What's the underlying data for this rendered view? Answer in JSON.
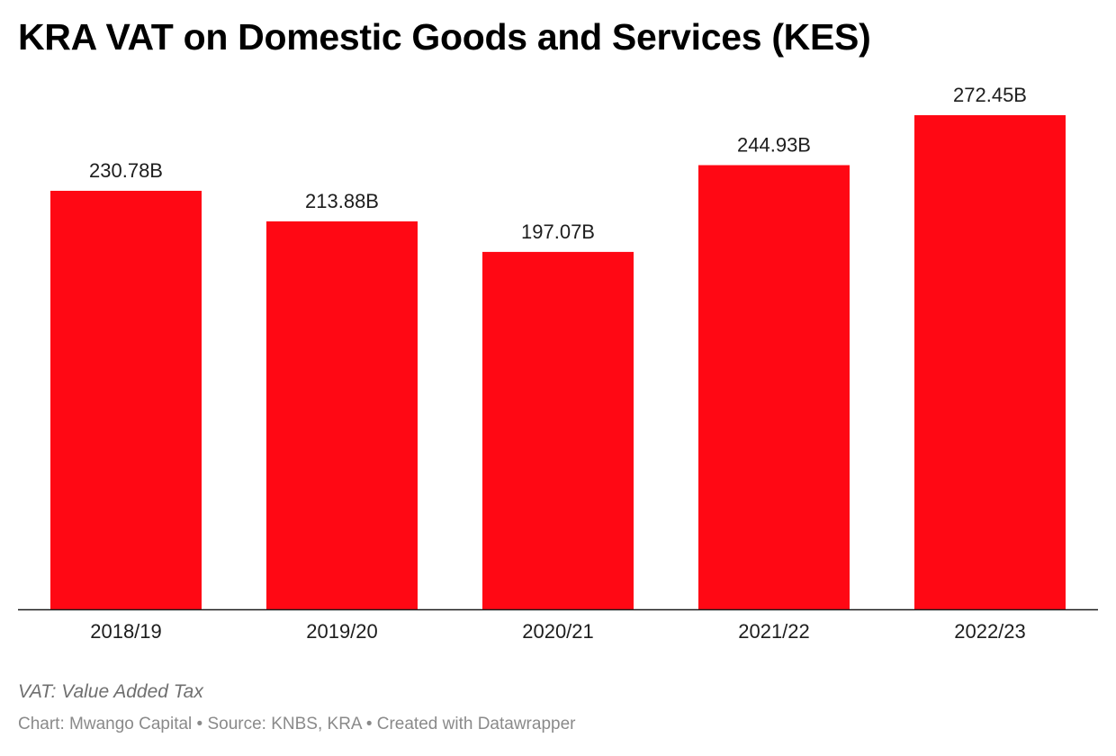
{
  "header": {
    "title": "KRA VAT on Domestic Goods and Services (KES)"
  },
  "footer": {
    "notes": "VAT: Value Added Tax",
    "byline": "Chart: Mwango Capital • Source: KNBS, KRA • Created with Datawrapper"
  },
  "colors": {
    "bar": "#ff0814",
    "axis": "#1d1d1d"
  },
  "chart_data": {
    "type": "bar",
    "title": "KRA VAT on Domestic Goods and Services (KES)",
    "xlabel": "",
    "ylabel": "",
    "categories": [
      "2018/19",
      "2019/20",
      "2020/21",
      "2021/22",
      "2022/23"
    ],
    "values": [
      230.78,
      213.88,
      197.07,
      244.93,
      272.45
    ],
    "value_labels": [
      "230.78B",
      "213.88B",
      "197.07B",
      "244.93B",
      "272.45B"
    ],
    "unit": "B",
    "ylim": [
      0,
      272.45
    ],
    "grid": false,
    "legend": "none"
  }
}
